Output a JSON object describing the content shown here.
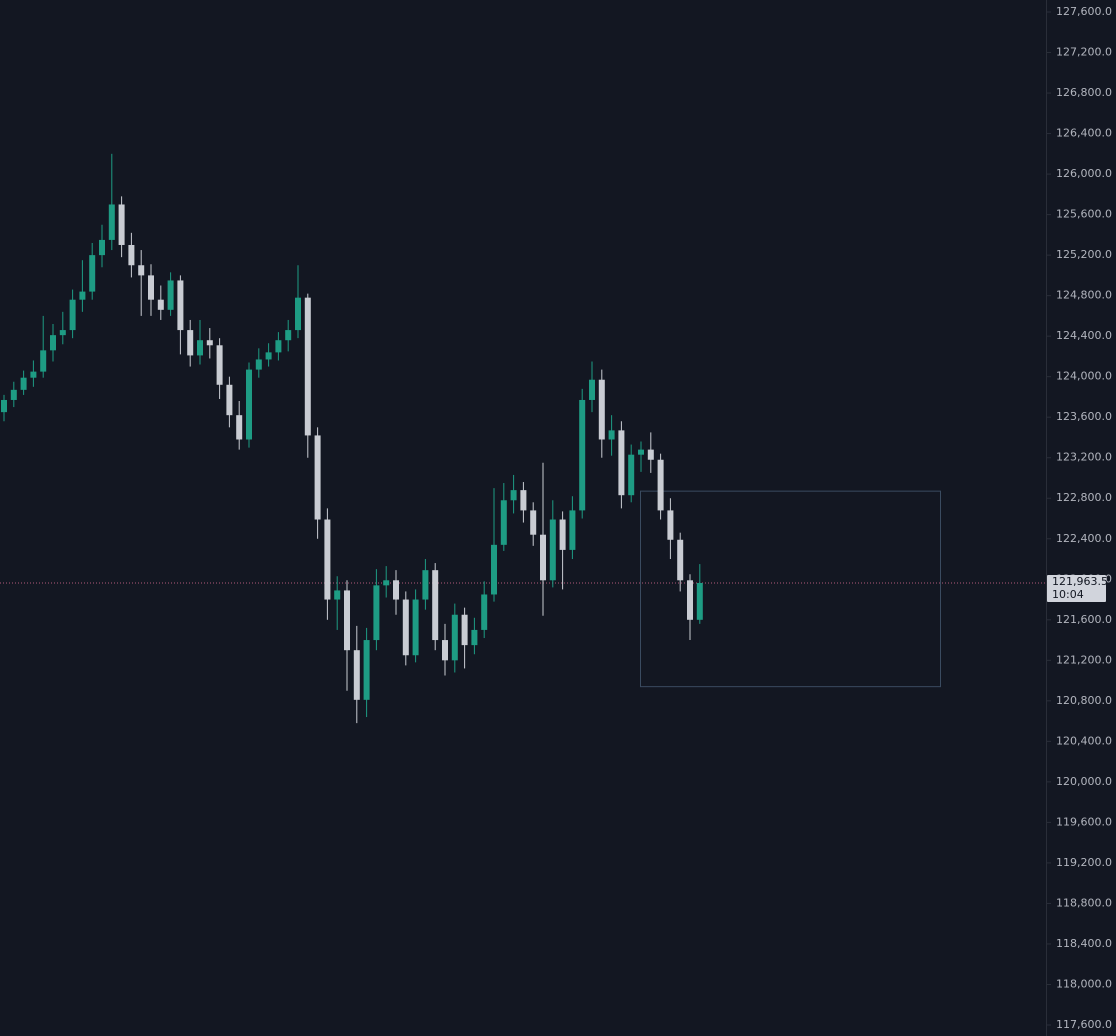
{
  "chart_data": {
    "type": "candlestick",
    "up_color": "#1e9c84",
    "down_color": "#c9ccd3",
    "open": [
      123650,
      123770,
      123870,
      123990,
      124050,
      124260,
      124410,
      124460,
      124760,
      124840,
      125200,
      125350,
      125700,
      125300,
      125100,
      125000,
      124760,
      124660,
      124950,
      124460,
      124210,
      124360,
      124310,
      123920,
      123620,
      123380,
      124070,
      124170,
      124240,
      124360,
      124460,
      124780,
      123420,
      122590,
      121800,
      121890,
      121300,
      120810,
      121400,
      121940,
      121990,
      121800,
      121250,
      121800,
      122090,
      121400,
      121200,
      121650,
      121350,
      121500,
      121850,
      122340,
      122780,
      122880,
      122680,
      122440,
      121990,
      122590,
      122290,
      122680,
      123770,
      123970,
      123380,
      123470,
      122830,
      123230,
      123280,
      123180,
      122680,
      122390,
      121990,
      121600
    ],
    "high": [
      123820,
      123950,
      124060,
      124160,
      124600,
      124520,
      124640,
      124860,
      125150,
      125320,
      125500,
      126200,
      125780,
      125420,
      125250,
      125110,
      124900,
      125030,
      125000,
      124560,
      124560,
      124480,
      124380,
      124000,
      123760,
      124140,
      124280,
      124330,
      124440,
      124560,
      125100,
      124820,
      123500,
      122700,
      122030,
      121990,
      121540,
      121520,
      122100,
      122130,
      122090,
      121880,
      121900,
      122200,
      122160,
      121560,
      121760,
      121720,
      121620,
      121980,
      122900,
      122950,
      123030,
      122960,
      122760,
      123150,
      122780,
      122670,
      122820,
      123880,
      124150,
      124070,
      123620,
      123560,
      123330,
      123360,
      123450,
      123240,
      122800,
      122460,
      122050,
      122150
    ],
    "low": [
      123560,
      123700,
      123820,
      123900,
      123990,
      124150,
      124320,
      124380,
      124640,
      124760,
      125080,
      125250,
      125180,
      124980,
      124600,
      124600,
      124560,
      124600,
      124220,
      124100,
      124120,
      124180,
      123780,
      123500,
      123280,
      123300,
      123990,
      124100,
      124160,
      124250,
      124380,
      123200,
      122400,
      121600,
      121500,
      120900,
      120580,
      120640,
      121300,
      121820,
      121650,
      121150,
      121180,
      121700,
      121300,
      121050,
      121080,
      121120,
      121260,
      121420,
      121780,
      122280,
      122650,
      122560,
      122330,
      121640,
      121920,
      121900,
      122200,
      122600,
      123650,
      123200,
      123220,
      122700,
      122760,
      123060,
      123050,
      122590,
      122200,
      121880,
      121400,
      121560
    ],
    "close": [
      123770,
      123870,
      123990,
      124050,
      124260,
      124410,
      124460,
      124760,
      124840,
      125200,
      125350,
      125700,
      125300,
      125100,
      125000,
      124760,
      124660,
      124950,
      124460,
      124210,
      124360,
      124310,
      123920,
      123620,
      123380,
      124070,
      124170,
      124240,
      124360,
      124460,
      124780,
      123420,
      122590,
      121800,
      121890,
      121300,
      120810,
      121400,
      121940,
      121990,
      121800,
      121250,
      121800,
      122090,
      121400,
      121200,
      121650,
      121350,
      121500,
      121850,
      122340,
      122780,
      122880,
      122680,
      122440,
      121990,
      122590,
      122290,
      122680,
      123770,
      123970,
      123380,
      123470,
      122830,
      123230,
      123280,
      123180,
      122680,
      122390,
      121990,
      121600,
      121963.5
    ],
    "last_price": {
      "value": 121963.5,
      "label": "121,963.5"
    },
    "countdown": "10:04",
    "rectangle": {
      "high": 122870,
      "low": 120940,
      "color": "#3a4b60"
    },
    "ylim": [
      117600,
      127600
    ],
    "yticks": [
      {
        "value": 117600,
        "label": "117,600.0"
      },
      {
        "value": 118000,
        "label": "118,000.0"
      },
      {
        "value": 118400,
        "label": "118,400.0"
      },
      {
        "value": 118800,
        "label": "118,800.0"
      },
      {
        "value": 119200,
        "label": "119,200.0"
      },
      {
        "value": 119600,
        "label": "119,600.0"
      },
      {
        "value": 120000,
        "label": "120,000.0"
      },
      {
        "value": 120400,
        "label": "120,400.0"
      },
      {
        "value": 120800,
        "label": "120,800.0"
      },
      {
        "value": 121200,
        "label": "121,200.0"
      },
      {
        "value": 121600,
        "label": "121,600.0"
      },
      {
        "value": 122000,
        "label": "122,000.0"
      },
      {
        "value": 122400,
        "label": "122,400.0"
      },
      {
        "value": 122800,
        "label": "122,800.0"
      },
      {
        "value": 123200,
        "label": "123,200.0"
      },
      {
        "value": 123600,
        "label": "123,600.0"
      },
      {
        "value": 124000,
        "label": "124,000.0"
      },
      {
        "value": 124400,
        "label": "124,400.0"
      },
      {
        "value": 124800,
        "label": "124,800.0"
      },
      {
        "value": 125200,
        "label": "125,200.0"
      },
      {
        "value": 125600,
        "label": "125,600.0"
      },
      {
        "value": 126000,
        "label": "126,000.0"
      },
      {
        "value": 126400,
        "label": "126,400.0"
      },
      {
        "value": 126800,
        "label": "126,800.0"
      },
      {
        "value": 127200,
        "label": "127,200.0"
      },
      {
        "value": 127600,
        "label": "127,600.0"
      }
    ]
  }
}
